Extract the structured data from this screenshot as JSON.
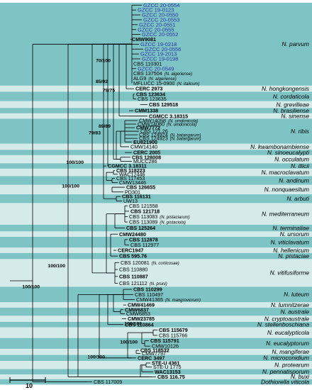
{
  "colors": {
    "band_dark": "#7fc4c5",
    "band_light": "#d4ebea",
    "blue_label": "#2434a8",
    "black": "#000000",
    "branch": "#000000"
  },
  "scale_bar": {
    "label": "10"
  },
  "supports": [
    "70/100",
    "85/92",
    "78/75",
    "89/89",
    "79/83",
    "100/100",
    "100/100",
    "100/100",
    "100/100",
    "100/100",
    "100/100",
    "100/100"
  ],
  "clades": [
    {
      "name": "N. parvum",
      "tone": "dark",
      "taxa": [
        {
          "label": "GZCC 20-0554",
          "color": "blue"
        },
        {
          "label": "GZCC 19-0123",
          "color": "blue"
        },
        {
          "label": "GZCC 20-0550",
          "color": "blue"
        },
        {
          "label": "GZCC 20-0553",
          "color": "blue"
        },
        {
          "label": "GZCC 20-0551",
          "color": "blue"
        },
        {
          "label": "GZCC 20-0555",
          "color": "blue"
        },
        {
          "label": "GZCC 20-0552",
          "color": "blue"
        },
        {
          "label": "CMW9081",
          "color": "black",
          "bold": true
        },
        {
          "label": "GZCC 19-0218",
          "color": "blue"
        },
        {
          "label": "GZCC 20-0556",
          "color": "blue"
        },
        {
          "label": "GZCC 19-2013",
          "color": "blue"
        },
        {
          "label": "GZCC 19-0198",
          "color": "blue"
        },
        {
          "label": "CBS 110301",
          "color": "black"
        },
        {
          "label": "GZCC 20-0549",
          "color": "blue"
        },
        {
          "label": "CBS 137504",
          "note": "(N. algeriense)",
          "color": "black"
        },
        {
          "label": "ALG9",
          "note": "(N. algeriense)",
          "color": "black"
        },
        {
          "label": "MFLUCC 15-0900",
          "note": "(N. italicum)",
          "color": "black"
        }
      ]
    },
    {
      "name": "N. hongkongensis",
      "tone": "light",
      "taxa": [
        {
          "label": "CERC 2973",
          "bold": true
        }
      ]
    },
    {
      "name": "N. cordaticola",
      "tone": "dark",
      "taxa": [
        {
          "label": "CBS 123634",
          "bold": true
        },
        {
          "label": "CBS 123635"
        }
      ]
    },
    {
      "name": "N. grevilleae",
      "tone": "light",
      "taxa": [
        {
          "label": "CBS 129518",
          "bold": true
        }
      ]
    },
    {
      "name": "N. brasiliense",
      "tone": "dark",
      "taxa": [
        {
          "label": "CMM1338",
          "bold": true
        }
      ]
    },
    {
      "name": "N. sinense",
      "tone": "light",
      "taxa": [
        {
          "label": "CGMCC 3.18315",
          "bold": true
        }
      ]
    },
    {
      "name": "N. ribis",
      "tone": "dark",
      "taxa": [
        {
          "label": "CMW14058",
          "note": "(N. umdonicola)"
        },
        {
          "label": "CMW14060",
          "note": "(N. umdonicola)"
        },
        {
          "label": "CMW7772",
          "bold": true
        },
        {
          "label": "CBS 121.26"
        },
        {
          "label": "CBS 124924",
          "note": "(N. batangarum)"
        },
        {
          "label": "CBS 124923",
          "note": "(N. batangarum)"
        },
        {
          "label": "EU821900",
          "bold": true
        }
      ]
    },
    {
      "name": "N. kwambonambiense",
      "tone": "light",
      "taxa": [
        {
          "label": "CMW14140"
        }
      ]
    },
    {
      "name": "N. sinoeucalypti",
      "tone": "dark",
      "taxa": [
        {
          "label": "CERC 2005",
          "bold": true
        }
      ]
    },
    {
      "name": "N. occulatum",
      "tone": "light",
      "taxa": [
        {
          "label": "CBS 128008",
          "bold": true
        },
        {
          "label": "MUCC286"
        }
      ]
    },
    {
      "name": "N. illicii",
      "tone": "dark",
      "taxa": [
        {
          "label": "CGMCC 3.18311",
          "bold": true
        }
      ]
    },
    {
      "name": "N. macroclavatum",
      "tone": "light",
      "taxa": [
        {
          "label": "CBS 118223",
          "bold": true
        },
        {
          "label": "WAC12446"
        }
      ]
    },
    {
      "name": "N. andinum",
      "tone": "dark",
      "taxa": [
        {
          "label": "CBS 117453"
        },
        {
          "label": "CMW13446"
        }
      ]
    },
    {
      "name": "N. nonquaesitum",
      "tone": "light",
      "taxa": [
        {
          "label": "CBS 126655",
          "bold": true
        },
        {
          "label": "PD301"
        }
      ]
    },
    {
      "name": "N. arbuti",
      "tone": "dark",
      "taxa": [
        {
          "label": "CBS 116131",
          "bold": true
        },
        {
          "label": "UW13"
        }
      ]
    },
    {
      "name": "N. mediterraneum",
      "tone": "light",
      "taxa": [
        {
          "label": "CBS 121558"
        },
        {
          "label": "CBS 121718",
          "bold": true
        },
        {
          "label": "CBS 113083",
          "note": "(N. pistaciarum)"
        },
        {
          "label": "CBS 113089",
          "note": "(N. pistaciola)"
        }
      ]
    },
    {
      "name": "N. terminaliae",
      "tone": "dark",
      "taxa": [
        {
          "label": "CBS 125264",
          "bold": true
        }
      ]
    },
    {
      "name": "N. ursorum",
      "tone": "light",
      "taxa": [
        {
          "label": "CMW24480",
          "bold": true
        }
      ]
    },
    {
      "name": "N. viticlavatum",
      "tone": "dark",
      "taxa": [
        {
          "label": "CBS 112878",
          "bold": true
        },
        {
          "label": "CBS 112977"
        }
      ]
    },
    {
      "name": "N. hellenicum",
      "tone": "light",
      "taxa": [
        {
          "label": "CERC1947",
          "bold": true
        }
      ]
    },
    {
      "name": "N. pistaciae",
      "tone": "dark",
      "taxa": [
        {
          "label": "CBS 595.76",
          "bold": true
        }
      ]
    },
    {
      "name": "N. vitifusiforme",
      "tone": "light",
      "taxa": [
        {
          "label": "CBS 120081",
          "note": "(N. corticosae)"
        },
        {
          "label": "CBS 110880"
        },
        {
          "label": "CBS 110887",
          "bold": true
        },
        {
          "label": "CBS 121112",
          "note": "(N. pruni)"
        }
      ]
    },
    {
      "name": "N. luteum",
      "tone": "dark",
      "taxa": [
        {
          "label": "CBS 110299",
          "bold": true
        },
        {
          "label": "CBS 110497"
        },
        {
          "label": "CMW41365",
          "note": "(N. mangroviorum)"
        }
      ]
    },
    {
      "name": "N. lumnitzerae",
      "tone": "light",
      "taxa": [
        {
          "label": "CMW41469",
          "bold": true
        }
      ]
    },
    {
      "name": "N. australe",
      "tone": "dark",
      "taxa": [
        {
          "label": "CMW6837",
          "bold": true
        },
        {
          "label": "CMW6853"
        }
      ]
    },
    {
      "name": "N. cryptoaustrale",
      "tone": "light",
      "taxa": [
        {
          "label": "CMW23785",
          "bold": true
        }
      ]
    },
    {
      "name": "N. stellenboschiana",
      "tone": "dark",
      "taxa": [
        {
          "label": "CBS 110864",
          "bold": true
        }
      ]
    },
    {
      "name": "N. eucalypticola",
      "tone": "light",
      "taxa": [
        {
          "label": "CBS 115679",
          "bold": true
        },
        {
          "label": "CBS 115766"
        }
      ]
    },
    {
      "name": "N. eucalyptorum",
      "tone": "dark",
      "taxa": [
        {
          "label": "CBS 115791",
          "bold": true
        },
        {
          "label": "CMW10126"
        }
      ]
    },
    {
      "name": "N. mangiferae",
      "tone": "light",
      "taxa": [
        {
          "label": "CBS 118532",
          "bold": true
        },
        {
          "label": "CMW7797"
        }
      ]
    },
    {
      "name": "N. microconidium",
      "tone": "dark",
      "taxa": [
        {
          "label": "CERC 3497",
          "bold": true
        }
      ]
    },
    {
      "name": "N. protearum",
      "tone": "light",
      "taxa": [
        {
          "label": "STE-U 4361",
          "bold": true
        },
        {
          "label": "STE-U 1775"
        }
      ]
    },
    {
      "name": "N. pennatisporum",
      "tone": "dark",
      "taxa": [
        {
          "label": "WAC13153",
          "bold": true
        }
      ]
    },
    {
      "name": "N. buxi",
      "tone": "light",
      "taxa": [
        {
          "label": "CBS 116.75",
          "bold": true
        }
      ]
    },
    {
      "name": "Dothiorella viticola",
      "tone": "dark",
      "taxa": [
        {
          "label": "CBS 117009"
        }
      ]
    }
  ]
}
